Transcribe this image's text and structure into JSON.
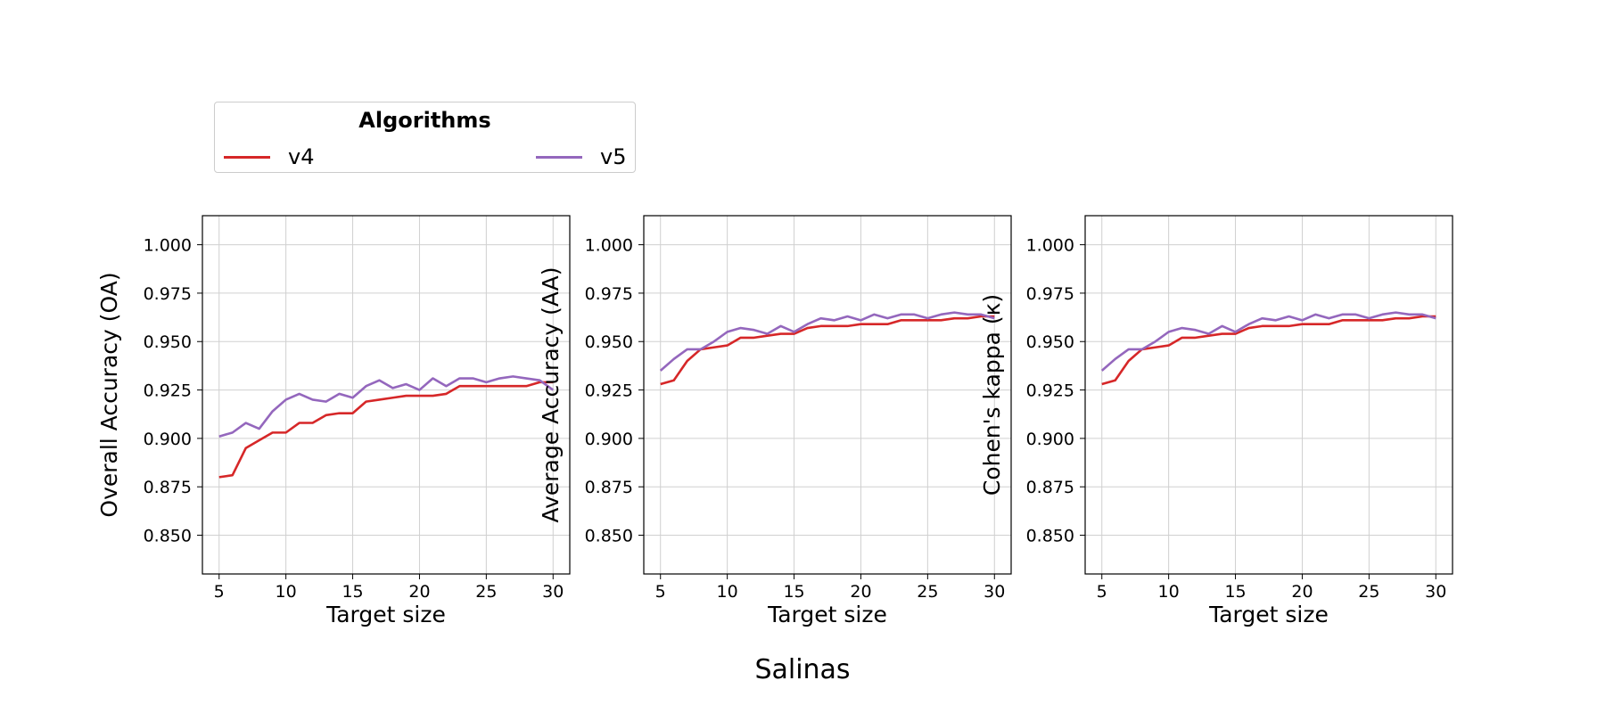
{
  "suptitle": "Salinas",
  "legend": {
    "title": "Algorithms",
    "entries": [
      {
        "label": "v4",
        "color": "#d62728"
      },
      {
        "label": "v5",
        "color": "#9467bd"
      }
    ]
  },
  "chart_data": [
    {
      "type": "line",
      "xlabel": "Target size",
      "ylabel": "Overall Accuracy (OA)",
      "xlim": [
        3.75,
        31.25
      ],
      "ylim": [
        0.83,
        1.015
      ],
      "xticks": [
        5,
        10,
        15,
        20,
        25,
        30
      ],
      "yticks": [
        0.85,
        0.875,
        0.9,
        0.925,
        0.95,
        0.975,
        1.0
      ],
      "ytick_labels": [
        "0.850",
        "0.875",
        "0.900",
        "0.925",
        "0.950",
        "0.975",
        "1.000"
      ],
      "grid": true,
      "x": [
        5,
        6,
        7,
        8,
        9,
        10,
        11,
        12,
        13,
        14,
        15,
        16,
        17,
        18,
        19,
        20,
        21,
        22,
        23,
        24,
        25,
        26,
        27,
        28,
        29,
        30
      ],
      "series": [
        {
          "name": "v4",
          "color": "#d62728",
          "values": [
            0.88,
            0.881,
            0.895,
            0.899,
            0.903,
            0.903,
            0.908,
            0.908,
            0.912,
            0.913,
            0.913,
            0.919,
            0.92,
            0.921,
            0.922,
            0.922,
            0.922,
            0.923,
            0.927,
            0.927,
            0.927,
            0.927,
            0.927,
            0.927,
            0.929,
            0.929
          ]
        },
        {
          "name": "v5",
          "color": "#9467bd",
          "values": [
            0.901,
            0.903,
            0.908,
            0.905,
            0.914,
            0.92,
            0.923,
            0.92,
            0.919,
            0.923,
            0.921,
            0.927,
            0.93,
            0.926,
            0.928,
            0.925,
            0.931,
            0.927,
            0.931,
            0.931,
            0.929,
            0.931,
            0.932,
            0.931,
            0.93,
            0.925
          ]
        }
      ]
    },
    {
      "type": "line",
      "xlabel": "Target size",
      "ylabel": "Average Accuracy (AA)",
      "xlim": [
        3.75,
        31.25
      ],
      "ylim": [
        0.83,
        1.015
      ],
      "xticks": [
        5,
        10,
        15,
        20,
        25,
        30
      ],
      "yticks": [
        0.85,
        0.875,
        0.9,
        0.925,
        0.95,
        0.975,
        1.0
      ],
      "ytick_labels": [
        "0.850",
        "0.875",
        "0.900",
        "0.925",
        "0.950",
        "0.975",
        "1.000"
      ],
      "grid": true,
      "x": [
        5,
        6,
        7,
        8,
        9,
        10,
        11,
        12,
        13,
        14,
        15,
        16,
        17,
        18,
        19,
        20,
        21,
        22,
        23,
        24,
        25,
        26,
        27,
        28,
        29,
        30
      ],
      "series": [
        {
          "name": "v4",
          "color": "#d62728",
          "values": [
            0.928,
            0.93,
            0.94,
            0.946,
            0.947,
            0.948,
            0.952,
            0.952,
            0.953,
            0.954,
            0.954,
            0.957,
            0.958,
            0.958,
            0.958,
            0.959,
            0.959,
            0.959,
            0.961,
            0.961,
            0.961,
            0.961,
            0.962,
            0.962,
            0.963,
            0.963
          ]
        },
        {
          "name": "v5",
          "color": "#9467bd",
          "values": [
            0.935,
            0.941,
            0.946,
            0.946,
            0.95,
            0.955,
            0.957,
            0.956,
            0.954,
            0.958,
            0.955,
            0.959,
            0.962,
            0.961,
            0.963,
            0.961,
            0.964,
            0.962,
            0.964,
            0.964,
            0.962,
            0.964,
            0.965,
            0.964,
            0.964,
            0.962
          ]
        }
      ]
    },
    {
      "type": "line",
      "xlabel": "Target size",
      "ylabel": "Cohen's kappa (κ)",
      "xlim": [
        3.75,
        31.25
      ],
      "ylim": [
        0.83,
        1.015
      ],
      "xticks": [
        5,
        10,
        15,
        20,
        25,
        30
      ],
      "yticks": [
        0.85,
        0.875,
        0.9,
        0.925,
        0.95,
        0.975,
        1.0
      ],
      "ytick_labels": [
        "0.850",
        "0.875",
        "0.900",
        "0.925",
        "0.950",
        "0.975",
        "1.000"
      ],
      "grid": true,
      "x": [
        5,
        6,
        7,
        8,
        9,
        10,
        11,
        12,
        13,
        14,
        15,
        16,
        17,
        18,
        19,
        20,
        21,
        22,
        23,
        24,
        25,
        26,
        27,
        28,
        29,
        30
      ],
      "series": [
        {
          "name": "v4",
          "color": "#d62728",
          "values": [
            0.928,
            0.93,
            0.94,
            0.946,
            0.947,
            0.948,
            0.952,
            0.952,
            0.953,
            0.954,
            0.954,
            0.957,
            0.958,
            0.958,
            0.958,
            0.959,
            0.959,
            0.959,
            0.961,
            0.961,
            0.961,
            0.961,
            0.962,
            0.962,
            0.963,
            0.963
          ]
        },
        {
          "name": "v5",
          "color": "#9467bd",
          "values": [
            0.935,
            0.941,
            0.946,
            0.946,
            0.95,
            0.955,
            0.957,
            0.956,
            0.954,
            0.958,
            0.955,
            0.959,
            0.962,
            0.961,
            0.963,
            0.961,
            0.964,
            0.962,
            0.964,
            0.964,
            0.962,
            0.964,
            0.965,
            0.964,
            0.964,
            0.962
          ]
        }
      ]
    }
  ]
}
